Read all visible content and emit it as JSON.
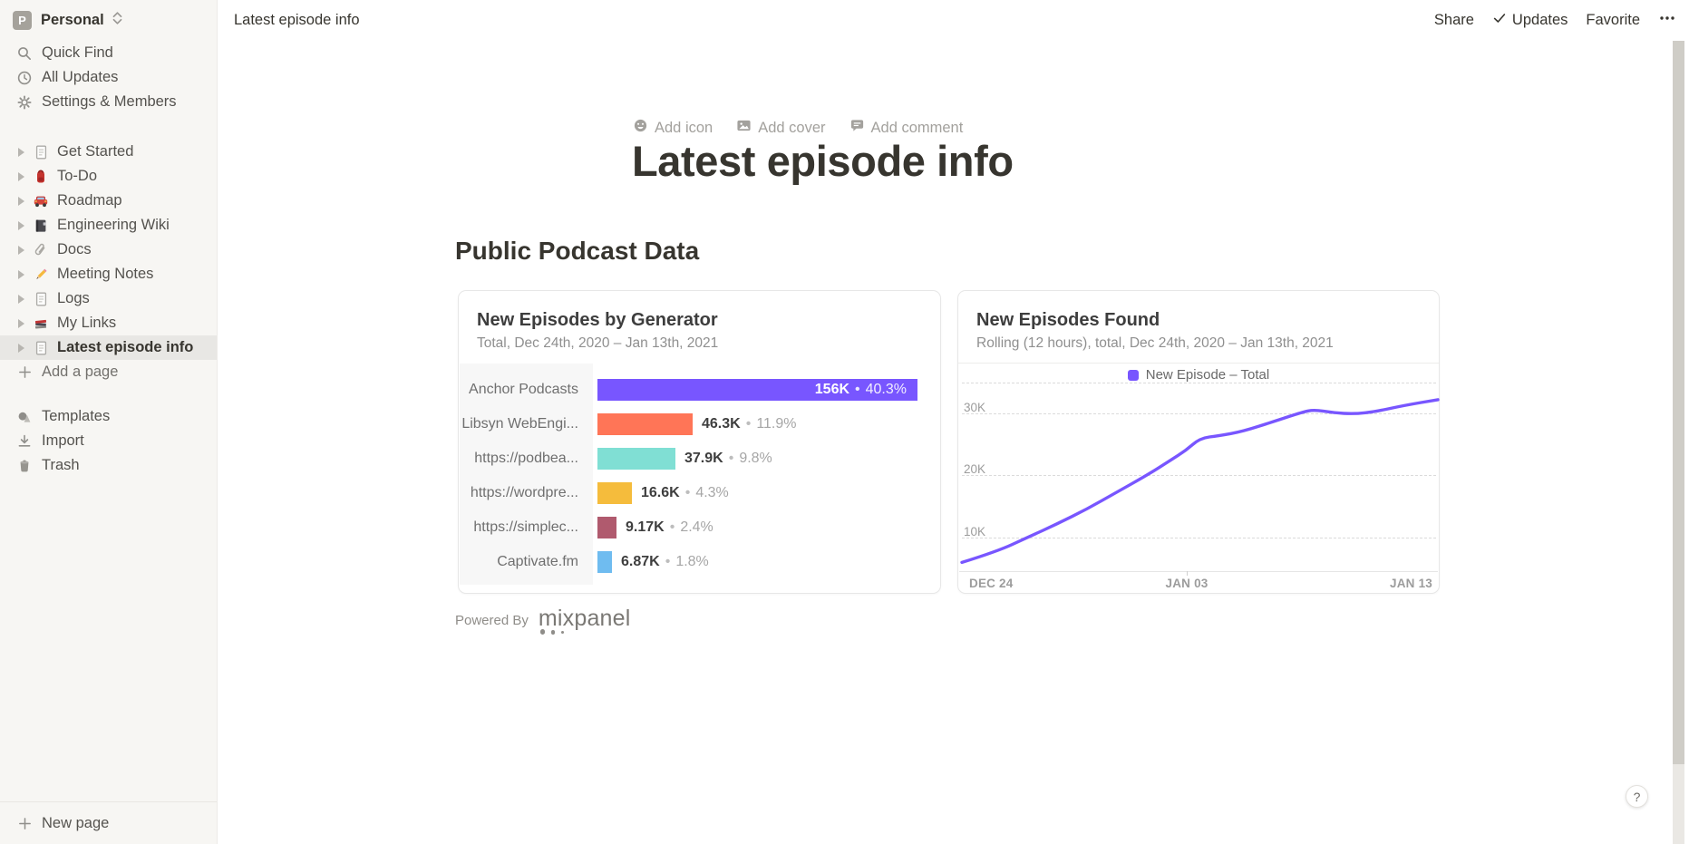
{
  "workspace": {
    "name": "Personal",
    "avatar_initial": "P"
  },
  "sidebar": {
    "top_items": [
      {
        "label": "Quick Find",
        "icon": "search-icon"
      },
      {
        "label": "All Updates",
        "icon": "clock-icon"
      },
      {
        "label": "Settings & Members",
        "icon": "gear-icon"
      }
    ],
    "pages": [
      {
        "label": "Get Started",
        "icon": "page-icon",
        "selected": false
      },
      {
        "label": "To-Do",
        "icon": "backpack-icon",
        "selected": false
      },
      {
        "label": "Roadmap",
        "icon": "car-icon",
        "selected": false
      },
      {
        "label": "Engineering Wiki",
        "icon": "notebook-icon",
        "selected": false
      },
      {
        "label": "Docs",
        "icon": "paperclip-icon",
        "selected": false
      },
      {
        "label": "Meeting Notes",
        "icon": "pencil-icon",
        "selected": false
      },
      {
        "label": "Logs",
        "icon": "page-icon",
        "selected": false
      },
      {
        "label": "My Links",
        "icon": "books-icon",
        "selected": false
      },
      {
        "label": "Latest episode info",
        "icon": "page-icon",
        "selected": true
      }
    ],
    "add_page_label": "Add a page",
    "bottom_items": [
      {
        "label": "Templates",
        "icon": "templates-icon"
      },
      {
        "label": "Import",
        "icon": "import-icon"
      },
      {
        "label": "Trash",
        "icon": "trash-icon"
      }
    ],
    "new_page_label": "New page"
  },
  "topbar": {
    "breadcrumb": "Latest episode info",
    "share_label": "Share",
    "updates_label": "Updates",
    "favorite_label": "Favorite"
  },
  "page": {
    "add_icon_label": "Add icon",
    "add_cover_label": "Add cover",
    "add_comment_label": "Add comment",
    "title": "Latest episode info",
    "section_heading": "Public Podcast Data"
  },
  "embed_footer": {
    "powered_by": "Powered By",
    "brand": "mixpanel"
  },
  "help_button": {
    "label": "?"
  },
  "colors": {
    "accent_purple": "#7856FF",
    "sidebar_bg": "#F7F6F3",
    "selected_row_bg": "#E8E7E4"
  },
  "chart_data": [
    {
      "type": "bar",
      "orientation": "horizontal",
      "title": "New Episodes by Generator",
      "subtitle": "Total, Dec 24th, 2020 – Jan 13th, 2021",
      "categories": [
        "Anchor Podcasts",
        "Libsyn WebEngi...",
        "https://podbea...",
        "https://wordpre...",
        "https://simplec...",
        "Captivate.fm"
      ],
      "values": [
        156000,
        46300,
        37900,
        16600,
        9170,
        6870
      ],
      "value_labels": [
        "156K",
        "46.3K",
        "37.9K",
        "16.6K",
        "9.17K",
        "6.87K"
      ],
      "percent_labels": [
        "40.3%",
        "11.9%",
        "9.8%",
        "4.3%",
        "2.4%",
        "1.8%"
      ],
      "bar_colors": [
        "#7856FF",
        "#FF7557",
        "#80DFD4",
        "#F5BC3C",
        "#B05A6E",
        "#6FBCF0"
      ],
      "xlim": [
        0,
        156000
      ]
    },
    {
      "type": "line",
      "title": "New Episodes Found",
      "subtitle": "Rolling (12 hours), total, Dec 24th, 2020 – Jan 13th, 2021",
      "legend": [
        {
          "label": "New Episode – Total",
          "color": "#7856FF"
        }
      ],
      "x_tick_labels": [
        "DEC 24",
        "JAN 03",
        "JAN 13"
      ],
      "x_range": [
        "Dec 24, 2020",
        "Jan 13, 2021"
      ],
      "y_ticks": [
        10000,
        20000,
        30000
      ],
      "y_tick_labels": [
        "10K",
        "20K",
        "30K"
      ],
      "line_color": "#7856FF",
      "grid": "dashed-horizontal",
      "points": [
        [
          0.0,
          6000
        ],
        [
          0.075,
          7800
        ],
        [
          0.137,
          10000
        ],
        [
          0.2,
          12200
        ],
        [
          0.263,
          14600
        ],
        [
          0.325,
          17300
        ],
        [
          0.388,
          20000
        ],
        [
          0.437,
          22400
        ],
        [
          0.47,
          24000
        ],
        [
          0.5,
          26000
        ],
        [
          0.54,
          26400
        ],
        [
          0.59,
          27100
        ],
        [
          0.66,
          28800
        ],
        [
          0.715,
          30200
        ],
        [
          0.74,
          30600
        ],
        [
          0.78,
          30100
        ],
        [
          0.825,
          29900
        ],
        [
          0.87,
          30300
        ],
        [
          0.93,
          31300
        ],
        [
          1.0,
          32200
        ]
      ]
    }
  ]
}
